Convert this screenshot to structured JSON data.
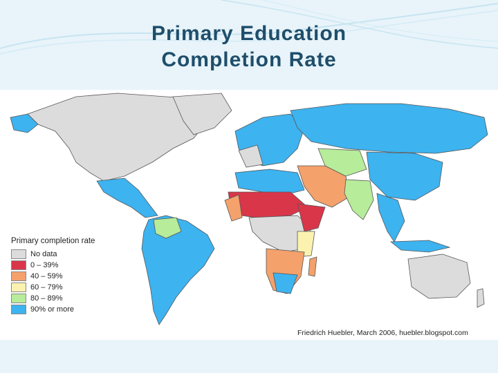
{
  "slide": {
    "title_line1": "Primary Education",
    "title_line2": "Completion Rate"
  },
  "legend": {
    "title": "Primary completion rate",
    "items": [
      {
        "label": "No data",
        "color": "#dcdcdc"
      },
      {
        "label": "0 – 39%",
        "color": "#d9364a"
      },
      {
        "label": "40 – 59%",
        "color": "#f4a16c"
      },
      {
        "label": "60 – 79%",
        "color": "#fbf2b0"
      },
      {
        "label": "80 – 89%",
        "color": "#b7ec9a"
      },
      {
        "label": "90% or more",
        "color": "#3db3f0"
      }
    ]
  },
  "credit": "Friedrich Huebler, March 2006, huebler.blogspot.com",
  "colors": {
    "title_text": "#1f4e6b",
    "background": "#e8f4fa",
    "map_border": "#555555"
  }
}
